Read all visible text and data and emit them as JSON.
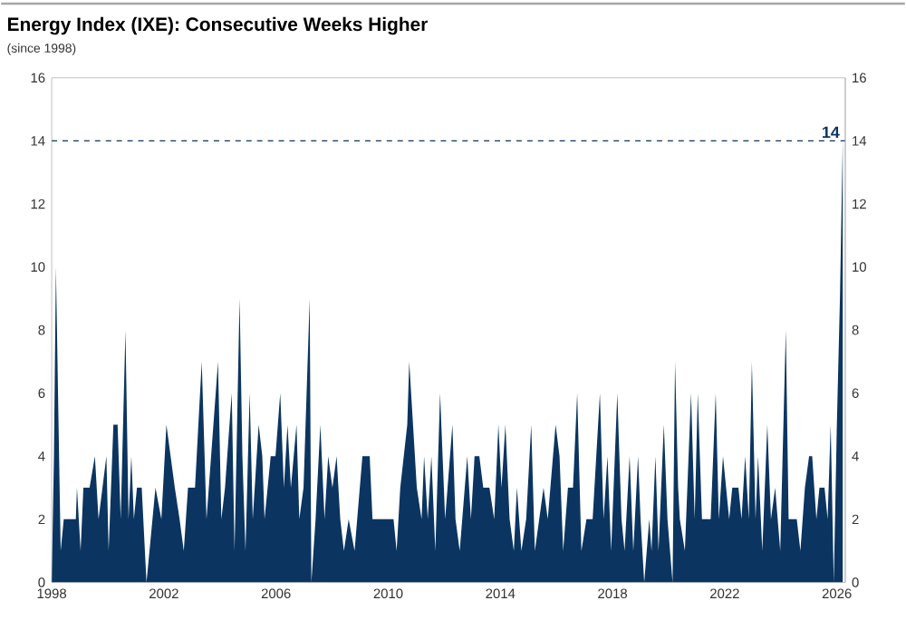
{
  "chart_data": {
    "type": "area",
    "title": "Energy Index (IXE): Consecutive Weeks Higher",
    "subtitle": "(since 1998)",
    "color": "#0b3560",
    "x": [
      1998.0,
      1998.08,
      1998.15,
      1998.32,
      1998.43,
      1998.86,
      1998.9,
      1999.03,
      1999.13,
      1999.35,
      1999.54,
      1999.67,
      1999.95,
      2000.03,
      2000.2,
      2000.35,
      2000.46,
      2000.63,
      2000.74,
      2000.84,
      2000.93,
      2001.04,
      2001.21,
      2001.38,
      2001.7,
      2001.91,
      2002.09,
      2002.39,
      2002.56,
      2002.71,
      2002.86,
      2003.11,
      2003.35,
      2003.52,
      2003.93,
      2004.05,
      2004.18,
      2004.42,
      2004.52,
      2004.7,
      2004.8,
      2004.91,
      2005.06,
      2005.17,
      2005.38,
      2005.51,
      2005.59,
      2005.81,
      2005.98,
      2006.15,
      2006.28,
      2006.41,
      2006.53,
      2006.73,
      2006.83,
      2006.98,
      2007.2,
      2007.26,
      2007.41,
      2007.58,
      2007.73,
      2007.86,
      2008.01,
      2008.16,
      2008.29,
      2008.42,
      2008.59,
      2008.8,
      2009.08,
      2009.34,
      2009.44,
      2010.19,
      2010.3,
      2010.43,
      2010.68,
      2010.75,
      2011.02,
      2011.19,
      2011.28,
      2011.41,
      2011.54,
      2011.68,
      2011.85,
      2012.03,
      2012.29,
      2012.4,
      2012.55,
      2012.82,
      2012.95,
      2013.08,
      2013.25,
      2013.39,
      2013.61,
      2013.78,
      2013.93,
      2014.04,
      2014.18,
      2014.33,
      2014.48,
      2014.59,
      2014.75,
      2014.92,
      2015.1,
      2015.23,
      2015.54,
      2015.69,
      2015.97,
      2016.11,
      2016.24,
      2016.41,
      2016.59,
      2016.74,
      2016.89,
      2017.07,
      2017.29,
      2017.55,
      2017.68,
      2017.82,
      2017.95,
      2018.17,
      2018.32,
      2018.43,
      2018.61,
      2018.74,
      2018.91,
      2019.0,
      2019.13,
      2019.31,
      2019.39,
      2019.53,
      2019.64,
      2019.83,
      2019.96,
      2020.14,
      2020.23,
      2020.34,
      2020.4,
      2020.58,
      2020.8,
      2020.93,
      2021.04,
      2021.19,
      2021.5,
      2021.68,
      2021.79,
      2021.94,
      2022.05,
      2022.16,
      2022.27,
      2022.49,
      2022.6,
      2022.73,
      2022.86,
      2022.97,
      2023.1,
      2023.19,
      2023.34,
      2023.52,
      2023.65,
      2023.8,
      2023.98,
      2024.18,
      2024.28,
      2024.57,
      2024.7,
      2024.86,
      2025.01,
      2025.12,
      2025.27,
      2025.38,
      2025.56,
      2025.67,
      2025.78,
      2025.89,
      2026.0,
      2026.11,
      2026.21
    ],
    "values": [
      0,
      4,
      10,
      1,
      2,
      2,
      3,
      1,
      3,
      3,
      4,
      2,
      4,
      1,
      5,
      5,
      2,
      8,
      2,
      4,
      2,
      3,
      3,
      0,
      3,
      2,
      5,
      3,
      2,
      1,
      3,
      3,
      7,
      2,
      7,
      2,
      3,
      6,
      1,
      9,
      4,
      1,
      6,
      2,
      5,
      4,
      2,
      4,
      4,
      6,
      3,
      5,
      3,
      5,
      2,
      3,
      9,
      0,
      2,
      5,
      2,
      4,
      3,
      4,
      2,
      1,
      2,
      1,
      4,
      4,
      2,
      2,
      1,
      3,
      5,
      7,
      3,
      2,
      4,
      2,
      4,
      1,
      6,
      2,
      5,
      2,
      1,
      4,
      2,
      4,
      4,
      3,
      3,
      2,
      5,
      3,
      5,
      2,
      1,
      3,
      1,
      2,
      5,
      1,
      3,
      2,
      5,
      4,
      1,
      3,
      3,
      6,
      1,
      2,
      2,
      6,
      2,
      4,
      1,
      6,
      2,
      1,
      4,
      1,
      4,
      2,
      0,
      2,
      1,
      4,
      1,
      5,
      2,
      0,
      7,
      3,
      2,
      1,
      6,
      2,
      6,
      2,
      2,
      6,
      2,
      4,
      3,
      2,
      3,
      3,
      2,
      4,
      2,
      7,
      2,
      4,
      1,
      5,
      2,
      3,
      1,
      8,
      2,
      2,
      1,
      3,
      4,
      4,
      2,
      3,
      3,
      2,
      5,
      0,
      5,
      9,
      14
    ],
    "xlim": [
      1998,
      2026.3
    ],
    "xticks": [
      1998,
      2002,
      2006,
      2010,
      2014,
      2018,
      2022,
      2026
    ],
    "ylim": [
      0,
      16
    ],
    "yticks": [
      0,
      2,
      4,
      6,
      8,
      10,
      12,
      14,
      16
    ],
    "y2lim": [
      0,
      16
    ],
    "y2ticks": [
      0,
      2,
      4,
      6,
      8,
      10,
      12,
      14,
      16
    ],
    "ref_lines": [
      {
        "axis": "y",
        "value": 14,
        "color": "#0b3560",
        "line_style": "dashed"
      }
    ],
    "annotations": [
      {
        "text": "14",
        "x": 2026.21,
        "y": 14
      }
    ],
    "grid": false
  }
}
